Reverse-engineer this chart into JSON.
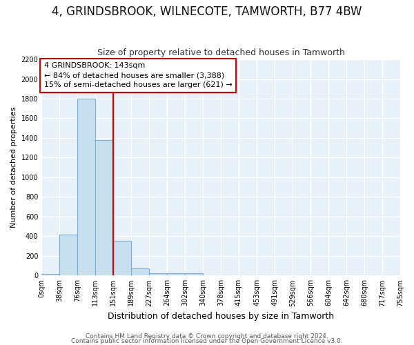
{
  "title": "4, GRINDSBROOK, WILNECOTE, TAMWORTH, B77 4BW",
  "subtitle": "Size of property relative to detached houses in Tamworth",
  "xlabel": "Distribution of detached houses by size in Tamworth",
  "ylabel": "Number of detached properties",
  "bar_edges": [
    0,
    38,
    76,
    113,
    151,
    189,
    227,
    264,
    302,
    340,
    378,
    415,
    453,
    491,
    529,
    566,
    604,
    642,
    680,
    717,
    755
  ],
  "bar_heights": [
    15,
    420,
    1800,
    1380,
    350,
    75,
    25,
    20,
    20,
    0,
    0,
    0,
    0,
    0,
    0,
    0,
    0,
    0,
    0,
    0
  ],
  "bar_color": "#c8dff0",
  "bar_edge_color": "#7aaed4",
  "property_line_x": 151,
  "property_line_color": "#cc0000",
  "ylim": [
    0,
    2200
  ],
  "yticks": [
    0,
    200,
    400,
    600,
    800,
    1000,
    1200,
    1400,
    1600,
    1800,
    2000,
    2200
  ],
  "annotation_text": "4 GRINDSBROOK: 143sqm\n← 84% of detached houses are smaller (3,388)\n15% of semi-detached houses are larger (621) →",
  "annotation_box_color": "#ffffff",
  "annotation_box_edge": "#cc0000",
  "footer1": "Contains HM Land Registry data © Crown copyright and database right 2024.",
  "footer2": "Contains public sector information licensed under the Open Government Licence v3.0.",
  "fig_bg_color": "#ffffff",
  "plot_bg_color": "#e8f0f8",
  "grid_color": "#ffffff",
  "title_fontsize": 12,
  "subtitle_fontsize": 9,
  "xlabel_fontsize": 9,
  "ylabel_fontsize": 8,
  "tick_fontsize": 7,
  "footer_fontsize": 6.5
}
